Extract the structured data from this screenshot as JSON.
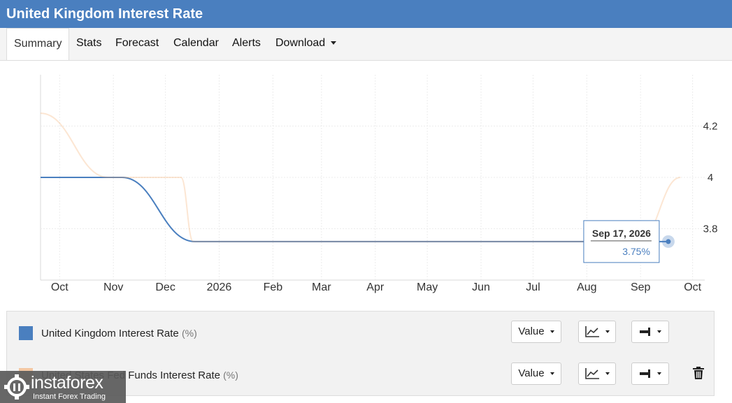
{
  "header": {
    "title": "United Kingdom Interest Rate"
  },
  "tabs": [
    {
      "label": "Summary",
      "active": true
    },
    {
      "label": "Stats"
    },
    {
      "label": "Forecast"
    },
    {
      "label": "Calendar"
    },
    {
      "label": "Alerts"
    },
    {
      "label": "Download",
      "dropdown": true
    }
  ],
  "chart_data": {
    "type": "line",
    "x_ticks": [
      "Oct",
      "Nov",
      "Dec",
      "2026",
      "Feb",
      "Mar",
      "Apr",
      "May",
      "Jun",
      "Jul",
      "Aug",
      "Sep",
      "Oct"
    ],
    "x_range": [
      "2025-09-20",
      "2026-10-08"
    ],
    "y_ticks": [
      3.8,
      4,
      4.2
    ],
    "ylim": [
      3.6,
      4.4
    ],
    "y_axis_side": "right",
    "grid": true,
    "series": [
      {
        "name": "United Kingdom Interest Rate",
        "color": "#4a7fbf",
        "points": [
          [
            "2025-09-20",
            4.0
          ],
          [
            "2025-11-06",
            4.0
          ],
          [
            "2025-12-18",
            3.75
          ],
          [
            "2026-09-17",
            3.75
          ]
        ]
      },
      {
        "name": "United States Fed Funds Interest Rate",
        "color": "#f4a460",
        "faded": true,
        "points": [
          [
            "2025-09-20",
            4.25
          ],
          [
            "2025-10-29",
            4.0
          ],
          [
            "2025-12-10",
            4.0
          ],
          [
            "2025-12-17",
            3.75
          ],
          [
            "2026-08-31",
            3.75
          ],
          [
            "2026-09-24",
            4.0
          ]
        ]
      }
    ],
    "tooltip": {
      "date": "Sep 17, 2026",
      "value": "3.75%"
    }
  },
  "legend": [
    {
      "label": "United Kingdom Interest Rate",
      "unit": "(%)",
      "color": "#4a7fbf"
    },
    {
      "label": "United States Fed Funds Interest Rate",
      "unit": "(%)",
      "color": "#f4a460"
    }
  ],
  "controls": {
    "value_label": "Value"
  },
  "icons": {
    "chart_type": "line-chart-icon",
    "axis": "axis-position-icon",
    "delete": "trash-icon",
    "logo": "gear-logo-icon"
  },
  "watermark": {
    "brand": "instaforex",
    "tagline": "Instant Forex Trading"
  }
}
